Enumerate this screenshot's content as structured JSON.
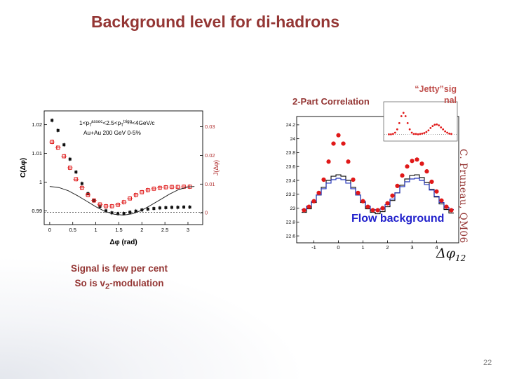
{
  "slide": {
    "title": "Background level for di-hadrons",
    "page_number": "22",
    "credit": "C. Pruneau, QM06",
    "notes": {
      "line1": "Signal is few per cent",
      "line2_pre": "So is v",
      "line2_sub": "2",
      "line2_post": "-modulation"
    }
  },
  "labels": {
    "two_part": "2-Part Correlation",
    "jetty_line1": "“Jetty”sig",
    "jetty_line2": "nal",
    "flow": "Flow background",
    "dphi12_main": "Δφ",
    "dphi12_sub": "12"
  },
  "colors": {
    "title_red": "#943634",
    "jetty_red": "#c0504d",
    "flow_blue": "#2222cc",
    "credit_red": "#953735",
    "page_gray": "#808080",
    "data_red": "#e01818",
    "hist_blue": "#2233bb",
    "hist_black": "#111111",
    "right_axis_red": "#b03030"
  },
  "chart_data": [
    {
      "id": "dihadron-correlation",
      "type": "scatter",
      "xlabel": "Δφ (rad)",
      "ylabel": "C(Δφ)",
      "ylabel_right": "J(Δφ)",
      "xlim": [
        -0.12,
        3.32
      ],
      "ylim": [
        0.9852,
        1.0248
      ],
      "x_ticks": [
        [
          0,
          "0"
        ],
        [
          0.5,
          "0.5"
        ],
        [
          1,
          "1"
        ],
        [
          1.5,
          "1.5"
        ],
        [
          2,
          "2"
        ],
        [
          2.5,
          "2.5"
        ],
        [
          3,
          "3"
        ]
      ],
      "y_ticks": [
        [
          0.99,
          "0.99"
        ],
        [
          1,
          "1"
        ],
        [
          1.01,
          "1.01"
        ],
        [
          1.02,
          "1.02"
        ]
      ],
      "y_ticks_right": [
        [
          0.9893,
          "0"
        ],
        [
          0.9993,
          "0.01"
        ],
        [
          1.0093,
          "0.02"
        ],
        [
          1.0193,
          "0.03"
        ]
      ],
      "baseline_y": 0.9895,
      "annotation_line1": [
        {
          "t": "1<p"
        },
        {
          "t": "T",
          "style": "sub"
        },
        {
          "t": "assoc",
          "style": "sup"
        },
        {
          "t": "<2.5<p"
        },
        {
          "t": "T",
          "style": "sub"
        },
        {
          "t": "trigg",
          "style": "sup"
        },
        {
          "t": "<4GeV/c"
        }
      ],
      "annotation_line2": [
        {
          "t": "Au+Au 200 GeV 0-5%"
        }
      ],
      "series": [
        {
          "name": "C(Δφ) Au+Au 0-5% (black squares)",
          "marker": "square-filled",
          "color": "#111111",
          "points": [
            [
              0.05,
              1.0215
            ],
            [
              0.18,
              1.018
            ],
            [
              0.31,
              1.013
            ],
            [
              0.44,
              1.008
            ],
            [
              0.57,
              1.0035
            ],
            [
              0.7,
              0.9995
            ],
            [
              0.83,
              0.996
            ],
            [
              0.96,
              0.9935
            ],
            [
              1.09,
              0.9915
            ],
            [
              1.22,
              0.99
            ],
            [
              1.35,
              0.9893
            ],
            [
              1.48,
              0.989
            ],
            [
              1.61,
              0.9891
            ],
            [
              1.74,
              0.9895
            ],
            [
              1.87,
              0.9899
            ],
            [
              2.0,
              0.9903
            ],
            [
              2.13,
              0.9906
            ],
            [
              2.26,
              0.9908
            ],
            [
              2.39,
              0.991
            ],
            [
              2.52,
              0.9911
            ],
            [
              2.65,
              0.9912
            ],
            [
              2.78,
              0.9912
            ],
            [
              2.91,
              0.9913
            ],
            [
              3.04,
              0.9913
            ]
          ]
        },
        {
          "name": "J(Δφ) (red open squares)",
          "marker": "square-open",
          "color": "#e02020",
          "points": [
            [
              0.05,
              1.014
            ],
            [
              0.18,
              1.012
            ],
            [
              0.31,
              1.009
            ],
            [
              0.44,
              1.005
            ],
            [
              0.57,
              1.001
            ],
            [
              0.7,
              0.998
            ],
            [
              0.83,
              0.9955
            ],
            [
              0.96,
              0.9936
            ],
            [
              1.09,
              0.9922
            ],
            [
              1.22,
              0.9916
            ],
            [
              1.35,
              0.9916
            ],
            [
              1.48,
              0.9921
            ],
            [
              1.61,
              0.993
            ],
            [
              1.74,
              0.9943
            ],
            [
              1.87,
              0.9955
            ],
            [
              2.0,
              0.9965
            ],
            [
              2.13,
              0.9972
            ],
            [
              2.26,
              0.9977
            ],
            [
              2.39,
              0.998
            ],
            [
              2.52,
              0.9982
            ],
            [
              2.65,
              0.9983
            ],
            [
              2.78,
              0.9983
            ],
            [
              2.91,
              0.9984
            ],
            [
              3.04,
              0.9984
            ]
          ]
        },
        {
          "name": "flow (v2) fit",
          "type": "line",
          "color": "#222222",
          "points": [
            [
              0,
              0.9985
            ],
            [
              0.2,
              0.9981
            ],
            [
              0.4,
              0.997
            ],
            [
              0.6,
              0.9953
            ],
            [
              0.8,
              0.9934
            ],
            [
              1.0,
              0.9914
            ],
            [
              1.2,
              0.9898
            ],
            [
              1.4,
              0.9888
            ],
            [
              1.6,
              0.9885
            ],
            [
              1.8,
              0.989
            ],
            [
              2.0,
              0.9902
            ],
            [
              2.2,
              0.992
            ],
            [
              2.4,
              0.9939
            ],
            [
              2.6,
              0.9958
            ],
            [
              2.8,
              0.9974
            ],
            [
              3.0,
              0.9983
            ],
            [
              3.14,
              0.9985
            ]
          ]
        }
      ]
    },
    {
      "id": "two-part-correlation",
      "type": "scatter",
      "xlabel": "Δφ12",
      "xlim": [
        -1.7,
        4.9
      ],
      "ylim": [
        22.5,
        24.32
      ],
      "x_ticks": [
        [
          -1,
          "-1"
        ],
        [
          0,
          "0"
        ],
        [
          1,
          "1"
        ],
        [
          2,
          "2"
        ],
        [
          3,
          "3"
        ],
        [
          4,
          "4"
        ]
      ],
      "y_ticks": [
        [
          22.6,
          "22.6"
        ],
        [
          22.8,
          "22.8"
        ],
        [
          23,
          "23"
        ],
        [
          23.2,
          "23.2"
        ],
        [
          23.4,
          "23.4"
        ],
        [
          23.6,
          "23.6"
        ],
        [
          23.8,
          "23.8"
        ],
        [
          24,
          "24"
        ],
        [
          24.2,
          "24.2"
        ]
      ],
      "series": [
        {
          "name": "2-part correlation data (red circles)",
          "marker": "circle",
          "color": "#e01818",
          "points": [
            [
              -1.4,
              22.97
            ],
            [
              -1.2,
              23.02
            ],
            [
              -1.0,
              23.1
            ],
            [
              -0.8,
              23.22
            ],
            [
              -0.6,
              23.41
            ],
            [
              -0.4,
              23.67
            ],
            [
              -0.2,
              23.93
            ],
            [
              0,
              24.05
            ],
            [
              0.2,
              23.93
            ],
            [
              0.4,
              23.67
            ],
            [
              0.6,
              23.41
            ],
            [
              0.8,
              23.22
            ],
            [
              1.0,
              23.1
            ],
            [
              1.2,
              23.02
            ],
            [
              1.4,
              22.97
            ],
            [
              1.6,
              22.97
            ],
            [
              1.8,
              23.0
            ],
            [
              2.0,
              23.07
            ],
            [
              2.2,
              23.18
            ],
            [
              2.4,
              23.32
            ],
            [
              2.6,
              23.47
            ],
            [
              2.8,
              23.6
            ],
            [
              3.0,
              23.68
            ],
            [
              3.2,
              23.7
            ],
            [
              3.4,
              23.64
            ],
            [
              3.6,
              23.53
            ],
            [
              3.8,
              23.38
            ],
            [
              4.0,
              23.24
            ],
            [
              4.2,
              23.11
            ],
            [
              4.4,
              23.02
            ],
            [
              4.6,
              22.97
            ]
          ]
        },
        {
          "name": "flow background (black histogram)",
          "type": "step",
          "color": "#111111",
          "points": [
            [
              -1.4,
              22.94
            ],
            [
              -1.2,
              22.99
            ],
            [
              -1.0,
              23.08
            ],
            [
              -0.8,
              23.19
            ],
            [
              -0.6,
              23.3
            ],
            [
              -0.4,
              23.4
            ],
            [
              -0.2,
              23.46
            ],
            [
              0,
              23.48
            ],
            [
              0.2,
              23.46
            ],
            [
              0.4,
              23.4
            ],
            [
              0.6,
              23.3
            ],
            [
              0.8,
              23.19
            ],
            [
              1.0,
              23.08
            ],
            [
              1.2,
              22.99
            ],
            [
              1.4,
              22.94
            ],
            [
              1.6,
              22.92
            ],
            [
              1.8,
              22.95
            ],
            [
              2.0,
              23.02
            ],
            [
              2.2,
              23.11
            ],
            [
              2.4,
              23.22
            ],
            [
              2.6,
              23.33
            ],
            [
              2.8,
              23.42
            ],
            [
              3.0,
              23.47
            ],
            [
              3.2,
              23.48
            ],
            [
              3.4,
              23.44
            ],
            [
              3.6,
              23.37
            ],
            [
              3.8,
              23.27
            ],
            [
              4.0,
              23.16
            ],
            [
              4.2,
              23.06
            ],
            [
              4.4,
              22.98
            ],
            [
              4.6,
              22.93
            ]
          ]
        },
        {
          "name": "flow background (blue histogram)",
          "type": "step",
          "color": "#2233bb",
          "points": [
            [
              -1.4,
              22.98
            ],
            [
              -1.2,
              23.03
            ],
            [
              -1.0,
              23.1
            ],
            [
              -0.8,
              23.19
            ],
            [
              -0.6,
              23.28
            ],
            [
              -0.4,
              23.36
            ],
            [
              -0.2,
              23.41
            ],
            [
              0,
              23.43
            ],
            [
              0.2,
              23.41
            ],
            [
              0.4,
              23.36
            ],
            [
              0.6,
              23.28
            ],
            [
              0.8,
              23.19
            ],
            [
              1.0,
              23.1
            ],
            [
              1.2,
              23.03
            ],
            [
              1.4,
              22.98
            ],
            [
              1.6,
              22.97
            ],
            [
              1.8,
              22.99
            ],
            [
              2.0,
              23.05
            ],
            [
              2.2,
              23.13
            ],
            [
              2.4,
              23.22
            ],
            [
              2.6,
              23.31
            ],
            [
              2.8,
              23.38
            ],
            [
              3.0,
              23.42
            ],
            [
              3.2,
              23.43
            ],
            [
              3.4,
              23.4
            ],
            [
              3.6,
              23.34
            ],
            [
              3.8,
              23.26
            ],
            [
              4.0,
              23.17
            ],
            [
              4.2,
              23.08
            ],
            [
              4.4,
              23.01
            ],
            [
              4.6,
              22.98
            ]
          ]
        }
      ],
      "inset": {
        "name": "jetty signal (background subtracted)",
        "color": "#e01818",
        "xlim": [
          -1.7,
          4.9
        ],
        "ylim": [
          -0.12,
          0.88
        ],
        "points": [
          [
            -1.4,
            0.0
          ],
          [
            -1.2,
            0.0
          ],
          [
            -1.0,
            0.01
          ],
          [
            -0.8,
            0.05
          ],
          [
            -0.6,
            0.15
          ],
          [
            -0.4,
            0.34
          ],
          [
            -0.2,
            0.55
          ],
          [
            0,
            0.65
          ],
          [
            0.2,
            0.55
          ],
          [
            0.4,
            0.34
          ],
          [
            0.6,
            0.15
          ],
          [
            0.8,
            0.05
          ],
          [
            1.0,
            0.01
          ],
          [
            1.2,
            0.01
          ],
          [
            1.4,
            0.0
          ],
          [
            1.6,
            0.01
          ],
          [
            1.8,
            0.02
          ],
          [
            2.0,
            0.04
          ],
          [
            2.2,
            0.07
          ],
          [
            2.4,
            0.12
          ],
          [
            2.6,
            0.19
          ],
          [
            2.8,
            0.25
          ],
          [
            3.0,
            0.29
          ],
          [
            3.2,
            0.3
          ],
          [
            3.4,
            0.27
          ],
          [
            3.6,
            0.21
          ],
          [
            3.8,
            0.15
          ],
          [
            4.0,
            0.09
          ],
          [
            4.2,
            0.05
          ],
          [
            4.4,
            0.02
          ],
          [
            4.6,
            0.01
          ]
        ]
      }
    }
  ]
}
